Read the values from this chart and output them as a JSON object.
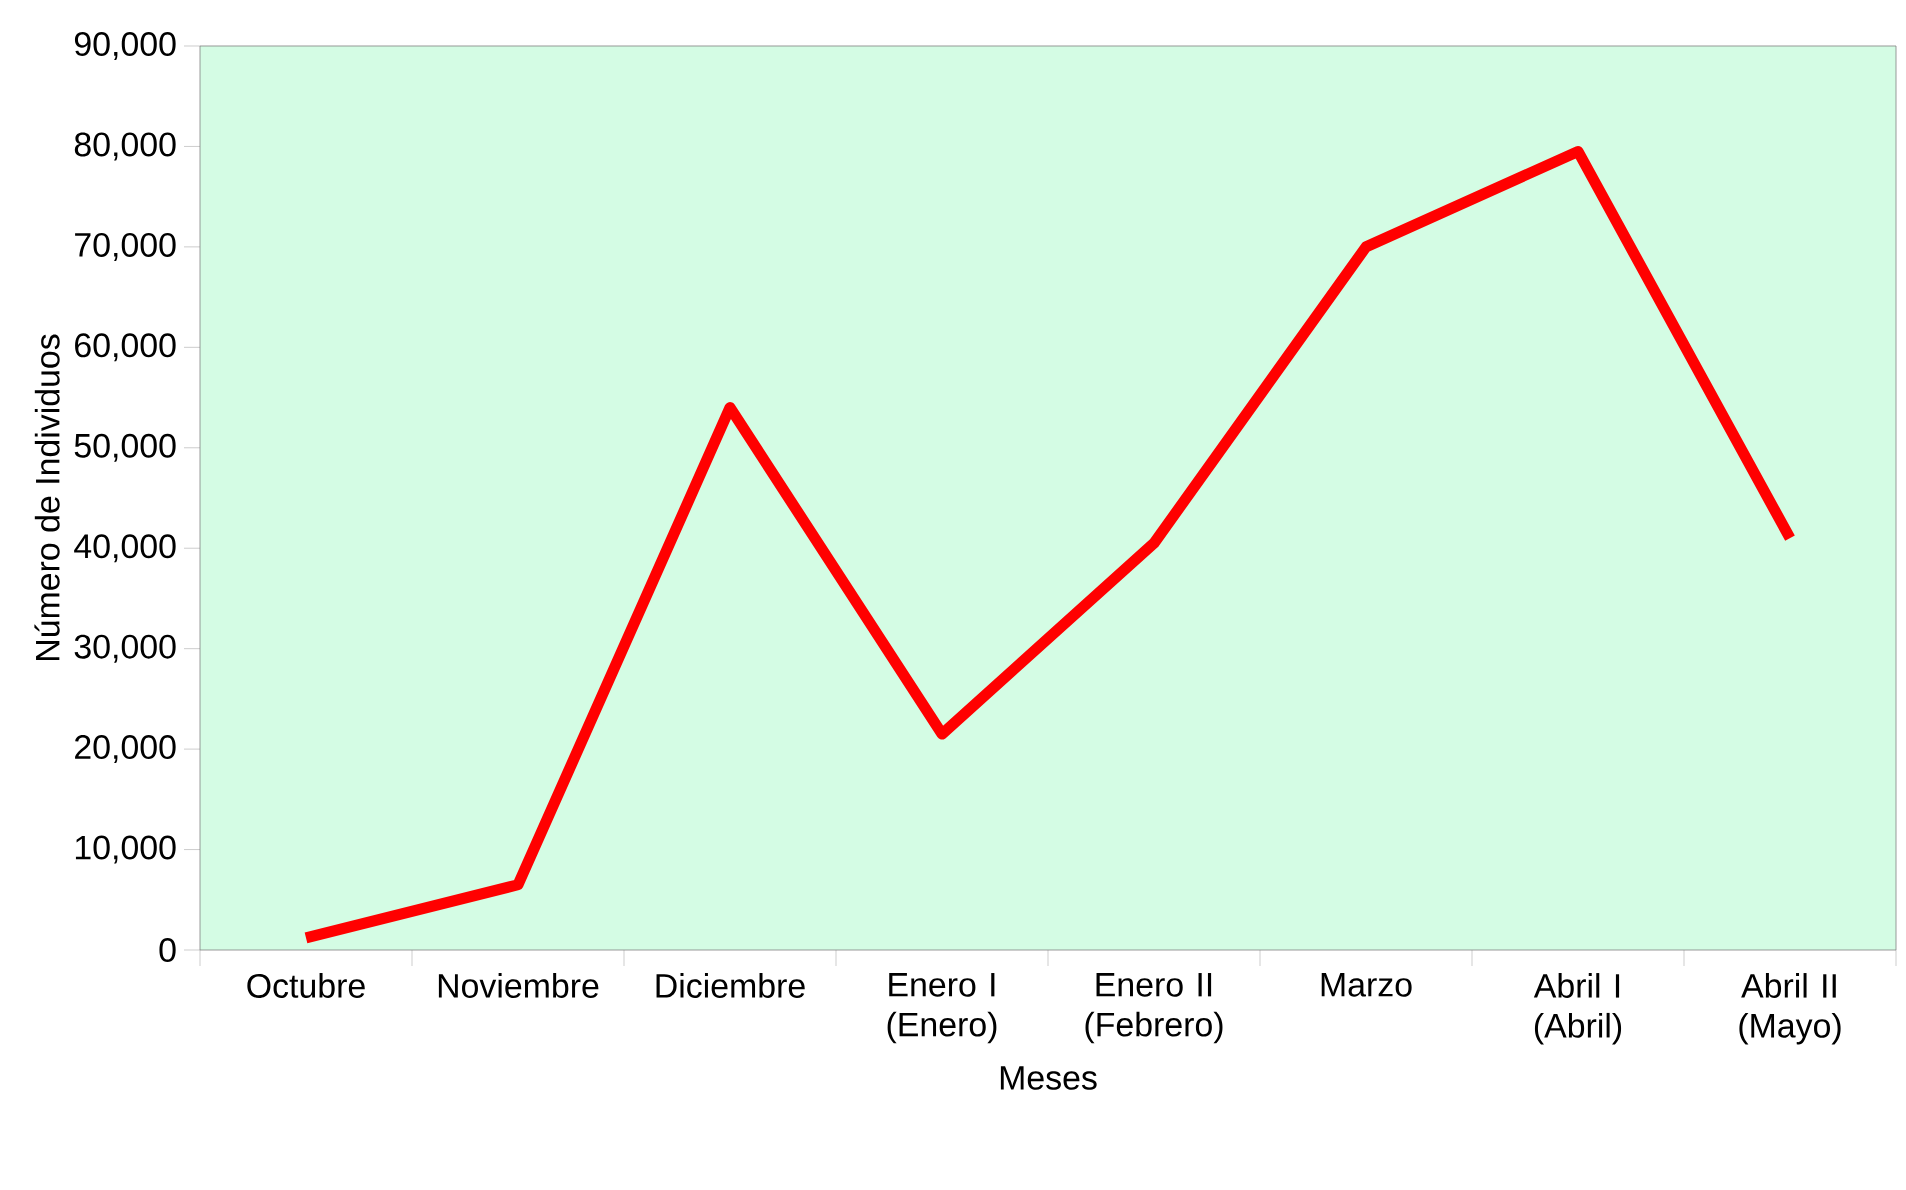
{
  "chart_data": {
    "type": "line",
    "xlabel": "Meses",
    "ylabel": "Número de Individuos",
    "categories": [
      "Octubre",
      "Noviembre",
      "Diciembre",
      "Enero I (Enero)",
      "Enero II (Febrero)",
      "Marzo",
      "Abril I (Abril)",
      "Abril II (Mayo)"
    ],
    "series": [
      {
        "color": "#ff0000",
        "values": [
          1200,
          6500,
          54000,
          21500,
          40500,
          70000,
          79500,
          41000
        ]
      }
    ],
    "ylim": [
      0,
      90000
    ],
    "yticks": [
      0,
      {
        "value": 10000,
        "label": "10,000"
      },
      {
        "value": 20000,
        "label": "20,000"
      },
      {
        "value": 30000,
        "label": "30,000"
      },
      {
        "value": 40000,
        "label": "40,000"
      },
      {
        "value": 50000,
        "label": "50,000"
      },
      {
        "value": 60000,
        "label": "60,000"
      },
      {
        "value": 70000,
        "label": "70,000"
      },
      {
        "value": 80000,
        "label": "80,000"
      },
      {
        "value": 90000,
        "label": "90,000"
      }
    ],
    "grid": false,
    "legend": false,
    "marker": "none",
    "line_style": "solid"
  }
}
